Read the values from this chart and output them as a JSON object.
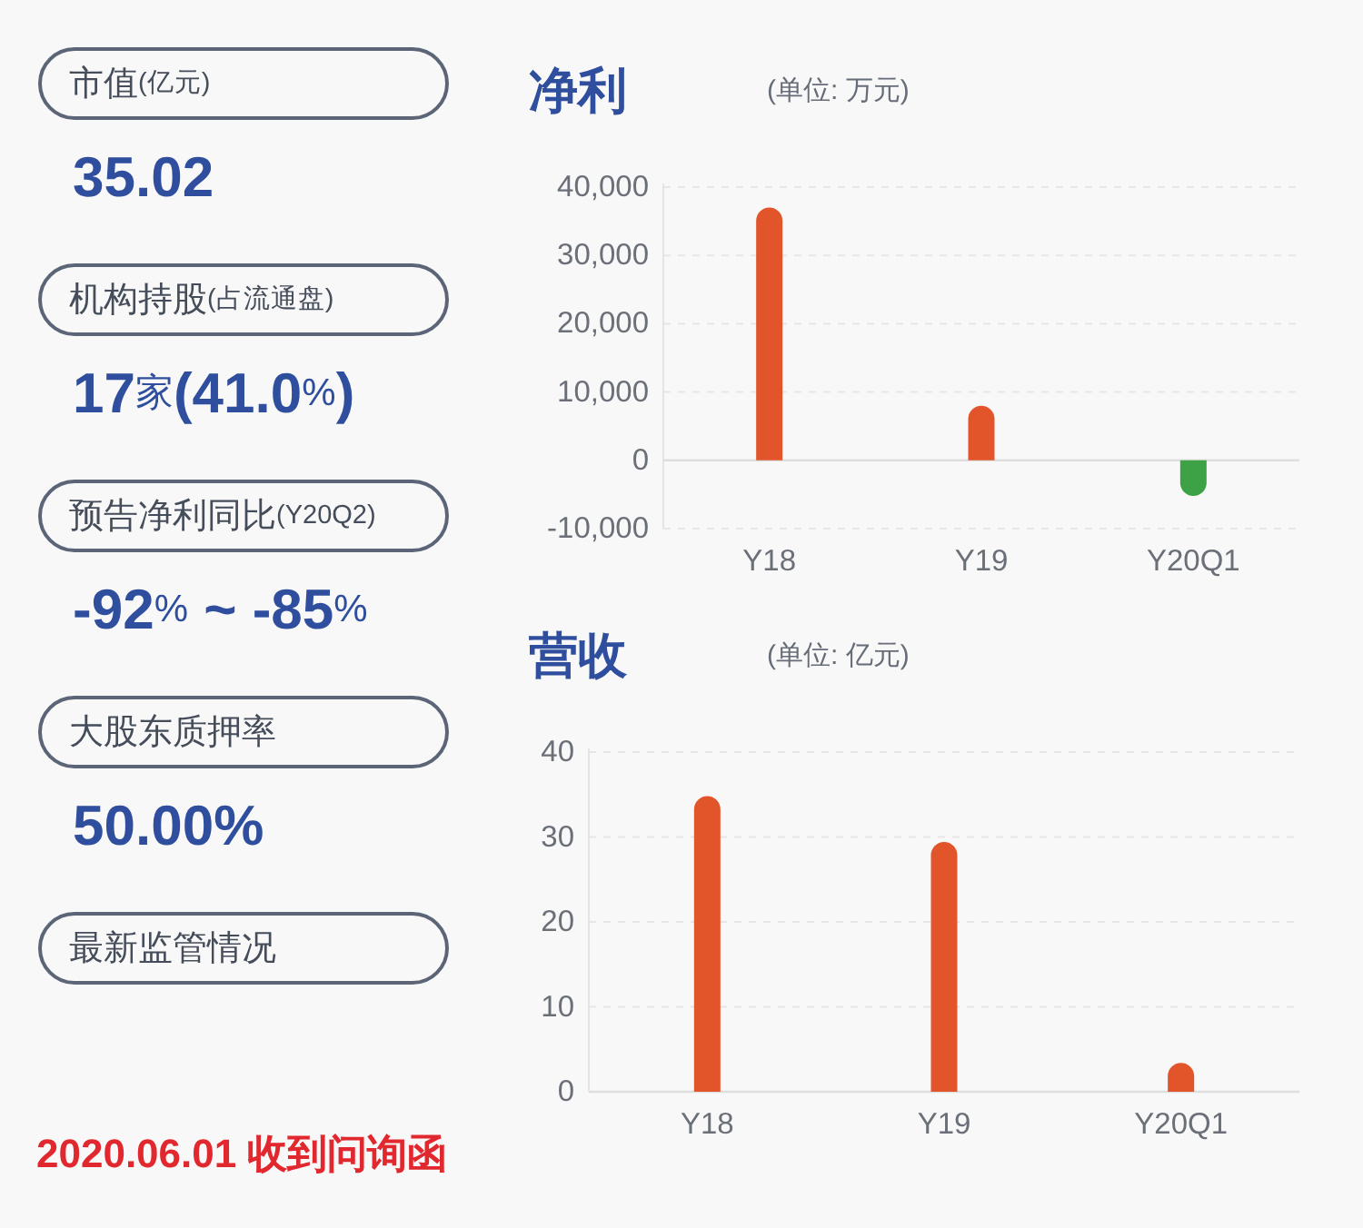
{
  "chart_data": [
    {
      "type": "other",
      "categories": [
        "市值(亿元)",
        "机构持股(占流通盘)",
        "预告净利同比(Y20Q2)",
        "大股东质押率",
        "最新监管情况"
      ],
      "annotations": [
        "35.02",
        "17家(41.0%)",
        "-92% ~ -85%",
        "50.00%",
        "2020.06.01 收到问询函"
      ],
      "colors": [
        "#2f4f9e",
        "#2f4f9e",
        "#2f4f9e",
        "#2f4f9e",
        "#e0282e"
      ]
    },
    {
      "type": "bar",
      "title": "净利",
      "subtitle": "(单位: 万元)",
      "categories": [
        "Y18",
        "Y19",
        "Y20Q1"
      ],
      "values": [
        37000,
        8000,
        -5200
      ],
      "colors": [
        "#e2542a",
        "#e2542a",
        "#3ca245"
      ],
      "ylim": [
        -10000,
        40000
      ],
      "yticks": [
        {
          "value": -10000,
          "label": "-10,000"
        },
        0,
        {
          "value": 10000,
          "label": "10,000"
        },
        {
          "value": 20000,
          "label": "20,000"
        },
        {
          "value": 30000,
          "label": "30,000"
        },
        {
          "value": 40000,
          "label": "40,000"
        }
      ],
      "grid": "y"
    },
    {
      "type": "bar",
      "title": "营收",
      "subtitle": "(单位: 亿元)",
      "categories": [
        "Y18",
        "Y19",
        "Y20Q1"
      ],
      "values": [
        34.8,
        29.4,
        3.4
      ],
      "colors": [
        "#e2542a",
        "#e2542a",
        "#e2542a"
      ],
      "ylim": [
        0,
        40
      ],
      "yticks": [
        0,
        10,
        20,
        30,
        40
      ],
      "grid": "y"
    }
  ]
}
